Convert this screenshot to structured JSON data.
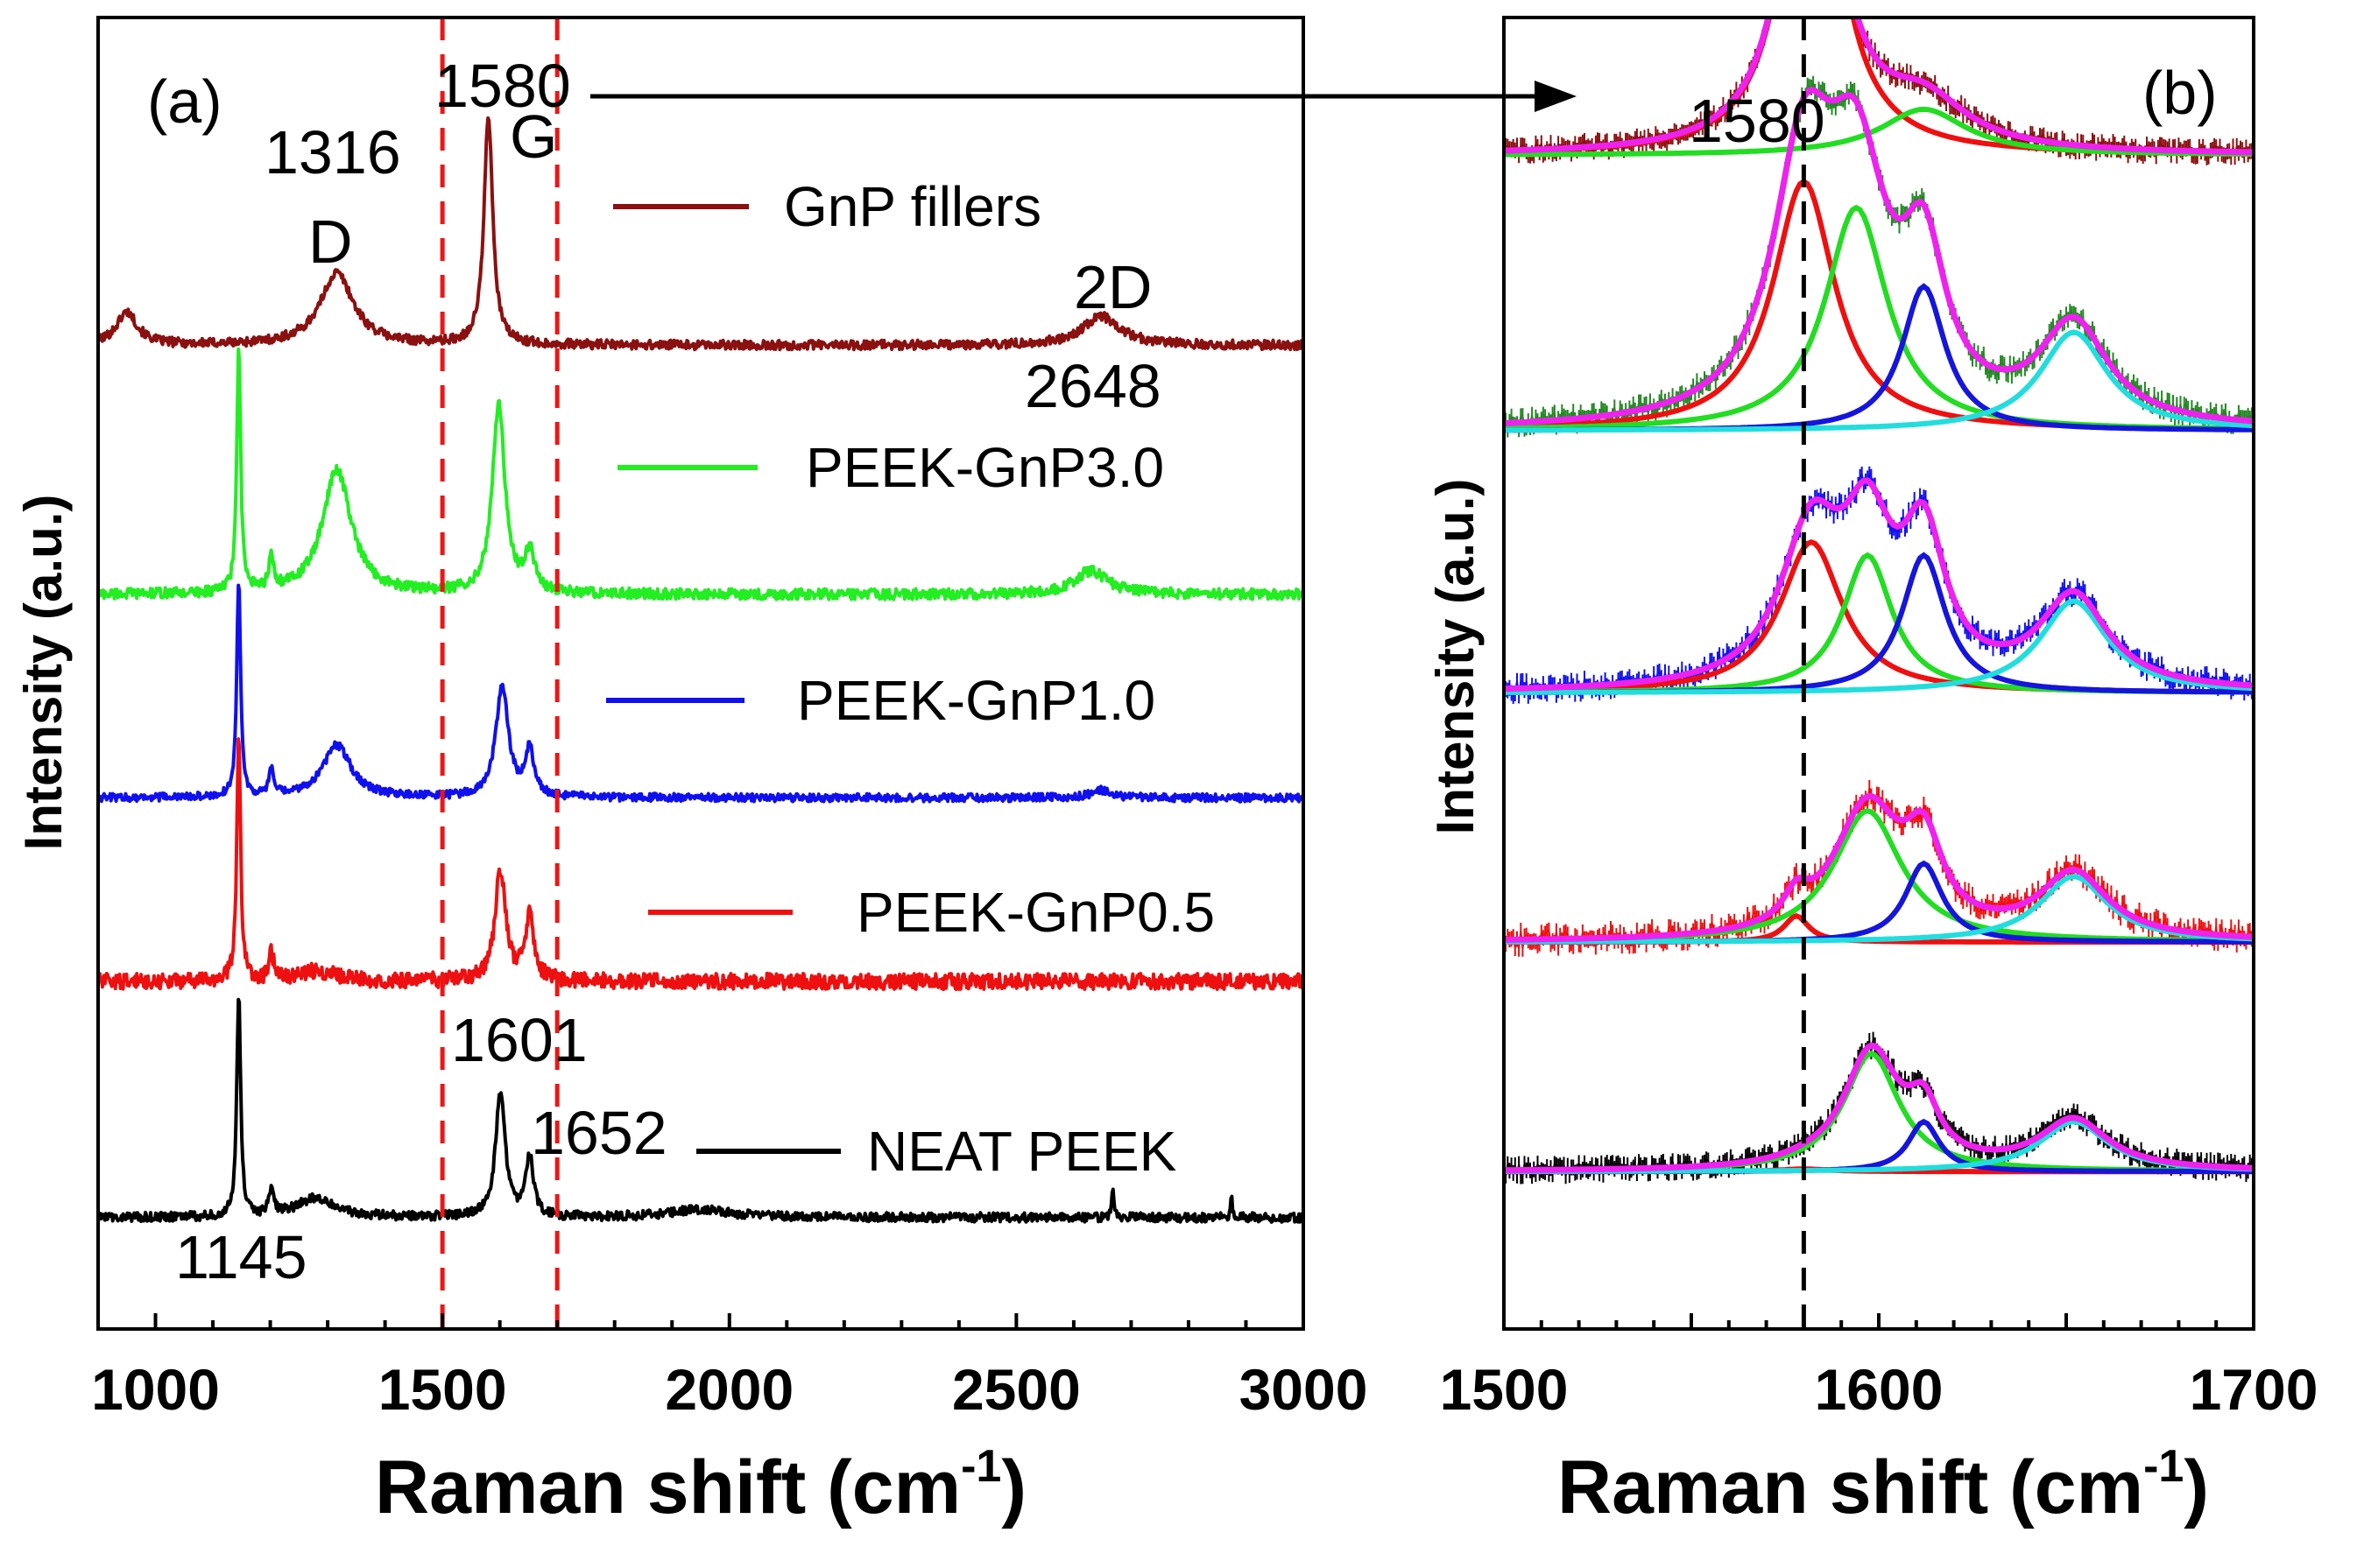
{
  "chart_data": [
    {
      "id": "a",
      "type": "line",
      "panel_label": "(a)",
      "xlabel": "Raman shift (cm",
      "xlabel_sup": "-1",
      "xlabel_close": ")",
      "ylabel": "Intensity (a.u.)",
      "xlim": [
        900,
        3000
      ],
      "ylim": [
        0,
        10
      ],
      "xticks": [
        1000,
        1500,
        2000,
        2500,
        3000
      ],
      "xtick_labels": [
        "1000",
        "1500",
        "2000",
        "2500",
        "3000"
      ],
      "vertical_dashed_lines": [
        1500,
        1700
      ],
      "series": [
        {
          "name": "GnP fillers",
          "color": "#8b1010",
          "baseline": 7.5,
          "noise": 0.035,
          "peaks": [
            [
              950,
              0.25,
              22
            ],
            [
              1316,
              0.55,
              35
            ],
            [
              1580,
              1.75,
              9
            ],
            [
              2648,
              0.22,
              40
            ]
          ]
        },
        {
          "name": "PEEK-GnP3.0",
          "color": "#22ee22",
          "baseline": 5.6,
          "noise": 0.04,
          "peaks": [
            [
              1145,
              1.85,
              4
            ],
            [
              1202,
              0.25,
              5
            ],
            [
              1316,
              0.95,
              30
            ],
            [
              1598,
              1.45,
              13
            ],
            [
              1652,
              0.3,
              10
            ],
            [
              2630,
              0.18,
              35
            ]
          ]
        },
        {
          "name": "PEEK-GnP1.0",
          "color": "#1010ee",
          "baseline": 4.05,
          "noise": 0.03,
          "peaks": [
            [
              1145,
              1.65,
              4
            ],
            [
              1202,
              0.2,
              5
            ],
            [
              1316,
              0.4,
              30
            ],
            [
              1604,
              0.85,
              13
            ],
            [
              1652,
              0.35,
              9
            ],
            [
              2648,
              0.06,
              20
            ]
          ]
        },
        {
          "name": "PEEK-GnP0.5",
          "color": "#ee1010",
          "baseline": 2.65,
          "noise": 0.06,
          "peaks": [
            [
              1145,
              1.85,
              4
            ],
            [
              1202,
              0.2,
              5
            ],
            [
              1280,
              0.08,
              40
            ],
            [
              1601,
              0.85,
              11
            ],
            [
              1652,
              0.48,
              9
            ]
          ]
        },
        {
          "name": "NEAT PEEK",
          "color": "#000000",
          "baseline": 0.85,
          "noise": 0.035,
          "peaks": [
            [
              1145,
              1.7,
              4
            ],
            [
              1202,
              0.2,
              5
            ],
            [
              1280,
              0.15,
              40
            ],
            [
              1601,
              0.95,
              10
            ],
            [
              1652,
              0.45,
              8
            ],
            [
              1950,
              0.06,
              60
            ],
            [
              2668,
              0.2,
              2
            ],
            [
              2875,
              0.15,
              2
            ]
          ]
        }
      ],
      "annotations": {
        "peak_1580": "1580",
        "peak_G": "G",
        "peak_1316": "1316",
        "peak_D": "D",
        "peak_2D": "2D",
        "peak_2648": "2648",
        "peak_1601": "1601",
        "peak_1652": "1652",
        "peak_1145": "1145"
      }
    },
    {
      "id": "b",
      "type": "line",
      "panel_label": "(b)",
      "xlabel": "Raman shift (cm",
      "xlabel_sup": "-1",
      "xlabel_close": ")",
      "ylabel": "Intensity (a.u.)",
      "xlim": [
        1500,
        1700
      ],
      "ylim": [
        0,
        10
      ],
      "xticks": [
        1500,
        1600,
        1700
      ],
      "xtick_labels": [
        "1500",
        "1600",
        "1700"
      ],
      "vertical_dashed_lines": [
        1580
      ],
      "peak_label": "1580",
      "fit_colors": {
        "p1580": "#ee1010",
        "p1598": "#22dd22",
        "p1612": "#1515dd",
        "p1652": "#22dddd",
        "sum": "#ee22ee"
      },
      "series": [
        {
          "name": "GnP fillers",
          "data_color": "#8b1010",
          "baseline": 8.95,
          "noise": 0.05,
          "components": [
            [
              1582,
              3.1,
              8
            ],
            [
              1612,
              0.35,
              14
            ]
          ]
        },
        {
          "name": "PEEK-GnP3.0",
          "data_color": "#228822",
          "baseline": 6.85,
          "noise": 0.06,
          "components": [
            [
              1580,
              1.9,
              10
            ],
            [
              1594,
              1.7,
              10
            ],
            [
              1612,
              1.1,
              7
            ],
            [
              1652,
              0.75,
              11
            ]
          ]
        },
        {
          "name": "PEEK-GnP1.0",
          "data_color": "#1010ee",
          "baseline": 4.85,
          "noise": 0.06,
          "components": [
            [
              1582,
              1.15,
              10
            ],
            [
              1597,
              1.05,
              8
            ],
            [
              1612,
              1.05,
              7
            ],
            [
              1652,
              0.7,
              11
            ]
          ]
        },
        {
          "name": "PEEK-GnP0.5",
          "data_color": "#ee1010",
          "baseline": 2.95,
          "noise": 0.07,
          "components": [
            [
              1578,
              0.2,
              4
            ],
            [
              1597,
              1.0,
              11
            ],
            [
              1612,
              0.6,
              6
            ],
            [
              1652,
              0.5,
              11
            ]
          ]
        },
        {
          "name": "NEAT PEEK",
          "data_color": "#000000",
          "baseline": 1.2,
          "noise": 0.05,
          "components": [
            [
              1580,
              0.02,
              8
            ],
            [
              1598,
              0.9,
              9
            ],
            [
              1612,
              0.38,
              5
            ],
            [
              1652,
              0.38,
              11
            ]
          ]
        }
      ]
    }
  ],
  "legend_a": [
    "GnP fillers",
    "PEEK-GnP3.0",
    "PEEK-GnP1.0",
    "PEEK-GnP0.5",
    "NEAT PEEK"
  ]
}
